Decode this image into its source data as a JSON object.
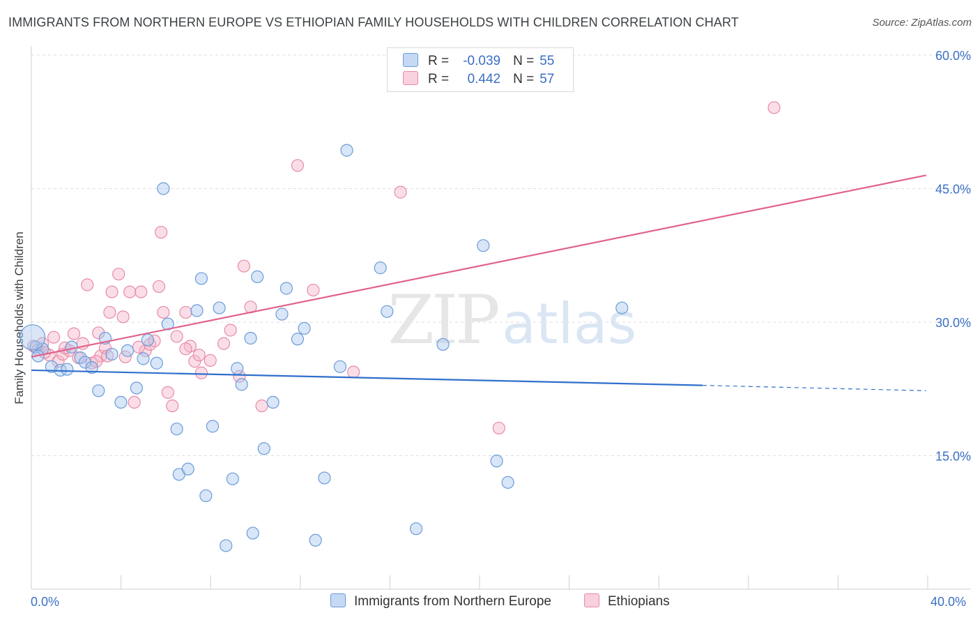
{
  "title": "IMMIGRANTS FROM NORTHERN EUROPE VS ETHIOPIAN FAMILY HOUSEHOLDS WITH CHILDREN CORRELATION CHART",
  "source": "Source: ZipAtlas.com",
  "watermark": {
    "zip": "ZIP",
    "atlas": "atlas"
  },
  "colors": {
    "blue": "#a9c8f0",
    "blue_stroke": "#6b9bd8",
    "blue_line": "#2f6fcc",
    "pink": "#f5b6c9",
    "pink_stroke": "#e88aa6",
    "pink_line": "#e0638a",
    "tick_label": "#3a6fc4",
    "grid": "#dddddd"
  },
  "legend": {
    "series": [
      {
        "r_label": "R =",
        "r_value": "-0.039",
        "n_label": "N =",
        "n_value": "55"
      },
      {
        "r_label": "R =",
        "r_value": "0.442",
        "n_label": "N =",
        "n_value": "57"
      }
    ]
  },
  "chart_data": {
    "type": "scatter",
    "title": "IMMIGRANTS FROM NORTHERN EUROPE VS ETHIOPIAN FAMILY HOUSEHOLDS WITH CHILDREN CORRELATION CHART",
    "xlabel": "",
    "ylabel": "Family Households with Children",
    "xlim": [
      0,
      42
    ],
    "ylim": [
      0,
      60
    ],
    "x_tick_labels": [
      "0.0%",
      "40.0%"
    ],
    "y_ticks": [
      15,
      30,
      45,
      60
    ],
    "y_tick_labels": [
      "15.0%",
      "30.0%",
      "45.0%",
      "60.0%"
    ],
    "grid": true,
    "legend_position": "bottom",
    "series": [
      {
        "name": "Immigrants from Northern Europe",
        "trend": {
          "x": [
            0,
            30
          ],
          "y": [
            24.6,
            22.9
          ],
          "dashed_x": [
            30,
            40
          ],
          "dashed_y": [
            22.9,
            22.3
          ]
        },
        "points": [
          [
            0.2,
            27.2
          ],
          [
            0.5,
            27.0
          ],
          [
            0.9,
            25.0
          ],
          [
            1.3,
            24.6
          ],
          [
            1.6,
            24.7
          ],
          [
            1.8,
            27.2
          ],
          [
            2.2,
            26.0
          ],
          [
            2.4,
            25.5
          ],
          [
            2.7,
            24.9
          ],
          [
            3.0,
            22.3
          ],
          [
            3.3,
            28.2
          ],
          [
            3.6,
            26.4
          ],
          [
            4.0,
            21.0
          ],
          [
            4.3,
            26.8
          ],
          [
            4.7,
            22.6
          ],
          [
            5.0,
            25.9
          ],
          [
            5.2,
            28.0
          ],
          [
            5.6,
            25.4
          ],
          [
            5.9,
            45.0
          ],
          [
            6.1,
            29.8
          ],
          [
            6.5,
            18.0
          ],
          [
            6.6,
            12.9
          ],
          [
            7.0,
            13.5
          ],
          [
            7.4,
            31.3
          ],
          [
            7.6,
            34.9
          ],
          [
            7.8,
            10.5
          ],
          [
            8.1,
            18.3
          ],
          [
            8.4,
            31.6
          ],
          [
            8.7,
            4.9
          ],
          [
            9.0,
            12.4
          ],
          [
            9.2,
            24.8
          ],
          [
            9.4,
            23.0
          ],
          [
            9.8,
            28.2
          ],
          [
            9.9,
            6.3
          ],
          [
            10.1,
            35.1
          ],
          [
            10.4,
            15.8
          ],
          [
            10.8,
            21.0
          ],
          [
            11.2,
            30.9
          ],
          [
            11.4,
            33.8
          ],
          [
            11.9,
            28.1
          ],
          [
            12.2,
            29.3
          ],
          [
            12.7,
            5.5
          ],
          [
            13.1,
            12.5
          ],
          [
            13.8,
            25.0
          ],
          [
            14.1,
            49.3
          ],
          [
            15.6,
            36.1
          ],
          [
            15.9,
            31.2
          ],
          [
            17.2,
            6.8
          ],
          [
            18.4,
            27.5
          ],
          [
            20.2,
            38.6
          ],
          [
            20.8,
            14.4
          ],
          [
            21.3,
            12.0
          ],
          [
            26.4,
            31.6
          ],
          [
            0.05,
            28.3
          ],
          [
            0.3,
            26.2
          ]
        ]
      },
      {
        "name": "Ethiopians",
        "trend": {
          "x": [
            0,
            40
          ],
          "y": [
            26.1,
            46.5
          ]
        },
        "points": [
          [
            0.1,
            27.3
          ],
          [
            0.3,
            26.9
          ],
          [
            0.5,
            27.6
          ],
          [
            0.8,
            26.3
          ],
          [
            1.0,
            28.3
          ],
          [
            1.2,
            25.6
          ],
          [
            1.4,
            26.4
          ],
          [
            1.7,
            26.8
          ],
          [
            1.9,
            28.7
          ],
          [
            2.1,
            26.0
          ],
          [
            2.3,
            27.6
          ],
          [
            2.5,
            34.2
          ],
          [
            2.7,
            25.4
          ],
          [
            3.0,
            28.8
          ],
          [
            3.1,
            26.2
          ],
          [
            3.3,
            27.1
          ],
          [
            3.5,
            31.1
          ],
          [
            3.6,
            33.4
          ],
          [
            3.9,
            35.4
          ],
          [
            4.1,
            30.6
          ],
          [
            4.2,
            26.1
          ],
          [
            4.4,
            33.4
          ],
          [
            4.6,
            21.0
          ],
          [
            4.9,
            33.4
          ],
          [
            5.1,
            26.8
          ],
          [
            5.3,
            27.5
          ],
          [
            5.5,
            27.9
          ],
          [
            5.7,
            34.0
          ],
          [
            5.8,
            40.1
          ],
          [
            5.9,
            31.1
          ],
          [
            6.1,
            22.1
          ],
          [
            6.3,
            20.6
          ],
          [
            6.5,
            28.4
          ],
          [
            6.9,
            31.1
          ],
          [
            7.1,
            27.3
          ],
          [
            7.3,
            25.6
          ],
          [
            7.5,
            26.3
          ],
          [
            7.6,
            24.3
          ],
          [
            8.0,
            25.7
          ],
          [
            8.6,
            27.6
          ],
          [
            8.9,
            29.1
          ],
          [
            9.3,
            23.9
          ],
          [
            9.5,
            36.3
          ],
          [
            9.8,
            31.7
          ],
          [
            10.3,
            20.6
          ],
          [
            11.9,
            47.6
          ],
          [
            12.6,
            33.6
          ],
          [
            14.4,
            24.4
          ],
          [
            16.5,
            44.6
          ],
          [
            20.9,
            18.1
          ],
          [
            33.2,
            54.1
          ],
          [
            4.8,
            27.2
          ],
          [
            6.9,
            27.0
          ],
          [
            1.5,
            27.1
          ],
          [
            2.9,
            25.6
          ],
          [
            3.4,
            26.2
          ],
          [
            0.6,
            26.6
          ]
        ]
      }
    ]
  }
}
